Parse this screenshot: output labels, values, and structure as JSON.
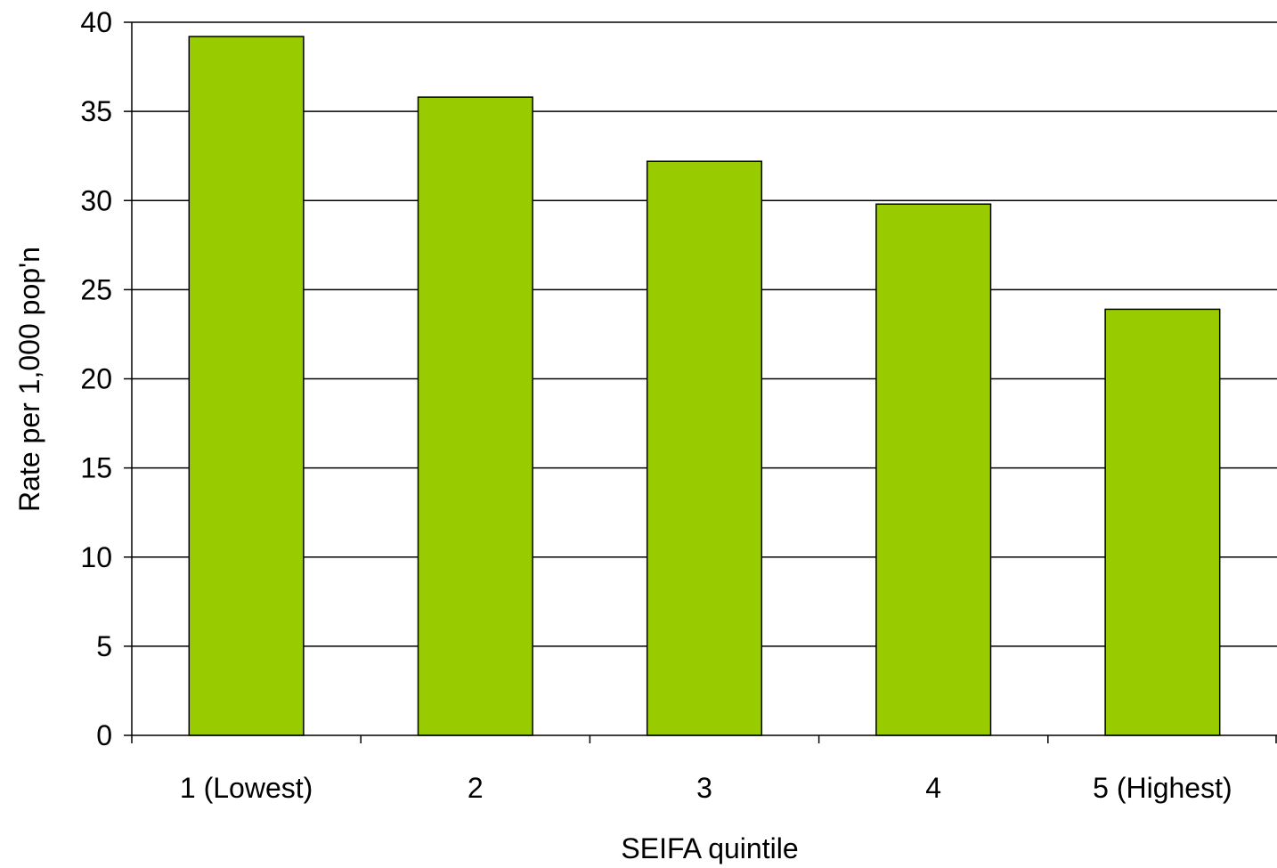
{
  "chart_data": {
    "type": "bar",
    "title": "",
    "xlabel": "SEIFA quintile",
    "ylabel": "Rate per 1,000 pop'n",
    "categories": [
      "1 (Lowest)",
      "2",
      "3",
      "4",
      "5 (Highest)"
    ],
    "values": [
      39.2,
      35.8,
      32.2,
      29.8,
      23.9
    ],
    "ylim": [
      0,
      40
    ],
    "yticks": [
      0,
      5,
      10,
      15,
      20,
      25,
      30,
      35,
      40
    ],
    "ytick_labels": [
      "0",
      "5",
      "10",
      "15",
      "20",
      "25",
      "30",
      "35",
      "40"
    ],
    "grid": true,
    "legend": "none",
    "colors": {
      "bar_fill": "#99cc00",
      "bar_stroke": "#000000",
      "grid": "#000000",
      "axis": "#000000",
      "background": "#ffffff"
    }
  }
}
